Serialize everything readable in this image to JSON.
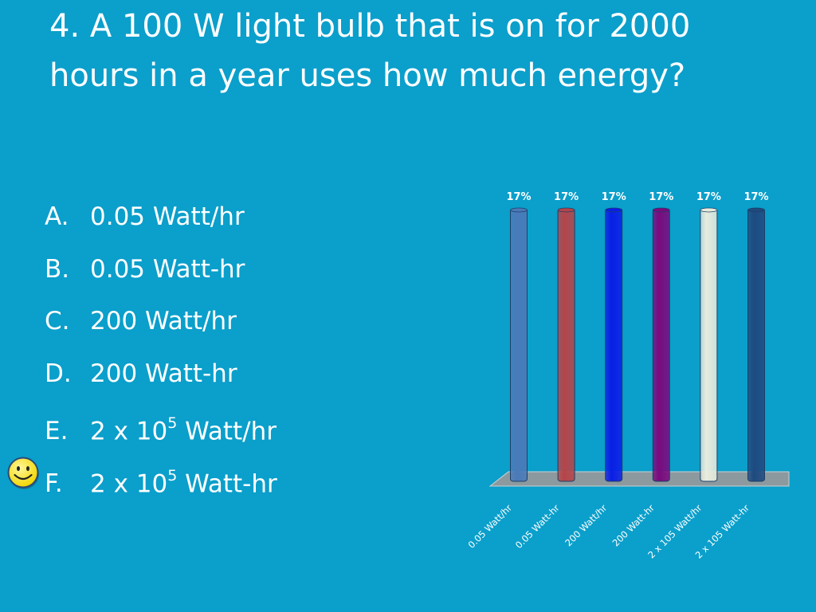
{
  "slide": {
    "title": "4.  A 100 W light bulb that is on for 2000 hours in a year uses how much energy?",
    "answers": [
      {
        "letter": "A.",
        "text": "0.05 Watt/hr"
      },
      {
        "letter": "B.",
        "text": "0.05 Watt-hr"
      },
      {
        "letter": "C.",
        "text": "200 Watt/hr"
      },
      {
        "letter": "D.",
        "text": "200 Watt-hr"
      },
      {
        "letter": "E.",
        "text_before": "2 x 10",
        "superscript": "5",
        "text_after": " Watt/hr"
      },
      {
        "letter": "F.",
        "text_before": "2 x 10",
        "superscript": "5",
        "text_after": " Watt-hr"
      }
    ],
    "correct_marker_icon": "smiley-face-icon",
    "colors": {
      "background": "#0b9fcb",
      "marker": "#ffe600"
    }
  },
  "chart_data": {
    "type": "bar",
    "categories": [
      "0.05 Watt/hr",
      "0.05 Watt-hr",
      "200 Watt/hr",
      "200 Watt-hr",
      "2 x 105 Watt/hr",
      "2 x 105 Watt-hr"
    ],
    "values": [
      17,
      17,
      17,
      17,
      17,
      17
    ],
    "data_labels": [
      "17%",
      "17%",
      "17%",
      "17%",
      "17%",
      "17%"
    ],
    "ylim": [
      0,
      17
    ],
    "grid": false,
    "colors": [
      "#4a7ab8",
      "#b5454a",
      "#0a1ee6",
      "#7a0a7e",
      "#e8ecde",
      "#1e4a80"
    ]
  }
}
